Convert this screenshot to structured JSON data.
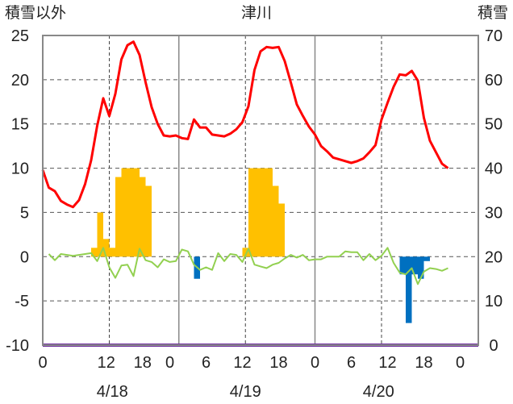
{
  "header": {
    "left_axis_label": "積雪以外",
    "title": "津川",
    "right_axis_label": "積雪"
  },
  "chart_data": {
    "type": "line",
    "title": "津川",
    "ylabel_left": "積雪以外",
    "ylabel_right": "積雪",
    "ylim_left": [
      -10,
      25
    ],
    "ylim_right": [
      0,
      70
    ],
    "yticks_left": [
      25,
      20,
      15,
      10,
      5,
      0,
      -5,
      -10
    ],
    "yticks_right": [
      70,
      60,
      50,
      40,
      30,
      20,
      10,
      0
    ],
    "xlim_hours": [
      0,
      72
    ],
    "x_tick_labels": [
      "0",
      "12",
      "18",
      "0",
      "6",
      "12",
      "18",
      "0",
      "6",
      "12",
      "18",
      "0"
    ],
    "x_tick_hours": [
      0,
      10.5,
      16.5,
      21,
      27,
      33,
      39,
      45,
      51,
      57,
      63,
      69
    ],
    "date_labels": [
      {
        "label": "4/18",
        "hour": 11.5
      },
      {
        "label": "4/19",
        "hour": 33.5
      },
      {
        "label": "4/20",
        "hour": 55.5
      }
    ],
    "day_boundaries_hours": [
      22.5,
      45
    ],
    "dashed_line_hours": [
      11,
      33.5,
      56
    ],
    "grid": true,
    "colors": {
      "temperature": "#ff0000",
      "precipitation": "#ffc000",
      "snow_change": "#0070c0",
      "wind": "#92d050",
      "snow_depth": "#7030a0"
    },
    "series": [
      {
        "kind": "temperature",
        "axis": "left",
        "x": [
          0,
          1,
          2,
          3,
          4,
          5,
          6,
          7,
          8,
          9,
          10,
          11,
          12,
          13,
          14,
          15,
          16,
          17,
          18,
          19,
          20,
          21,
          22,
          23,
          24,
          25,
          26,
          27,
          28,
          29,
          30,
          31,
          32,
          33,
          34,
          35,
          36,
          37,
          38,
          39,
          40,
          41,
          42,
          43,
          44,
          45,
          46,
          47,
          48,
          49,
          50,
          51,
          52,
          53,
          54,
          55,
          56,
          57,
          58,
          59,
          60,
          61,
          62,
          63,
          64,
          65,
          66,
          67
        ],
        "values": [
          9.8,
          7.8,
          7.4,
          6.3,
          5.9,
          5.6,
          6.4,
          8.2,
          10.9,
          14.8,
          17.9,
          15.9,
          18.4,
          22.3,
          23.9,
          24.3,
          22.8,
          19.7,
          16.9,
          15.0,
          13.7,
          13.6,
          13.7,
          13.4,
          13.3,
          15.5,
          14.6,
          14.6,
          13.8,
          13.7,
          13.6,
          13.9,
          14.4,
          15.2,
          17.0,
          21.1,
          23.2,
          23.7,
          23.6,
          23.7,
          22.1,
          19.7,
          17.2,
          15.9,
          14.7,
          13.8,
          12.5,
          11.9,
          11.2,
          11.0,
          10.8,
          10.6,
          10.8,
          11.1,
          11.8,
          12.6,
          15.5,
          17.4,
          19.2,
          20.6,
          20.5,
          21.0,
          19.9,
          15.7,
          13.1,
          11.8,
          10.5,
          10.0
        ]
      },
      {
        "kind": "precipitation",
        "axis": "left",
        "type": "bar",
        "x": [
          8,
          9,
          10,
          11,
          12,
          13,
          14,
          15,
          16,
          17,
          33,
          34,
          35,
          36,
          37,
          38,
          39
        ],
        "values": [
          1,
          5,
          2,
          1,
          9,
          10,
          10,
          10,
          9,
          8,
          1,
          10,
          10,
          10,
          10,
          8,
          6
        ]
      },
      {
        "kind": "snow_change",
        "axis": "left",
        "type": "bar",
        "x": [
          25,
          59,
          60,
          61,
          62,
          63
        ],
        "values": [
          -2.5,
          -2,
          -7.5,
          -2,
          -2.5,
          -0.5
        ]
      },
      {
        "kind": "wind",
        "axis": "left",
        "x": [
          1,
          2,
          3,
          5,
          6,
          8,
          9,
          10,
          11,
          12,
          13,
          14,
          15,
          16,
          17,
          18,
          19,
          20,
          21,
          22,
          23,
          24,
          25,
          26,
          27,
          28,
          29,
          30,
          31,
          32,
          33,
          34,
          35,
          36,
          37,
          38,
          39,
          40,
          41,
          42,
          43,
          44,
          45,
          46,
          47,
          48,
          49,
          50,
          51,
          52,
          53,
          54,
          55,
          56,
          57,
          58,
          59,
          60,
          61,
          62,
          63,
          64,
          65,
          66,
          67
        ],
        "values": [
          0.3,
          -0.4,
          0.3,
          0.1,
          0.2,
          0.4,
          -0.5,
          1.0,
          -1.2,
          -2.4,
          -1.0,
          -0.9,
          -2.2,
          0.9,
          -0.4,
          -0.6,
          -1.2,
          -0.3,
          -0.6,
          -0.5,
          0.8,
          0.6,
          -0.9,
          -1.5,
          -1.2,
          -1.5,
          0.4,
          -0.5,
          0.3,
          0.2,
          -0.6,
          0.9,
          -0.9,
          -1.1,
          -1.3,
          -0.9,
          -0.7,
          -0.2,
          0.2,
          -0.1,
          0.2,
          -0.4,
          -0.3,
          -0.3,
          0.0,
          0.0,
          0.0,
          0.6,
          0.5,
          0.5,
          -0.4,
          0.3,
          -0.4,
          0.1,
          1.0,
          -0.7,
          -1.8,
          -2.0,
          -1.3,
          -3.1,
          -1.7,
          -1.3,
          -1.4,
          -1.6,
          -1.3
        ]
      },
      {
        "kind": "snow_depth",
        "axis": "right",
        "x": [
          0,
          72
        ],
        "values": [
          0,
          0
        ]
      }
    ]
  }
}
